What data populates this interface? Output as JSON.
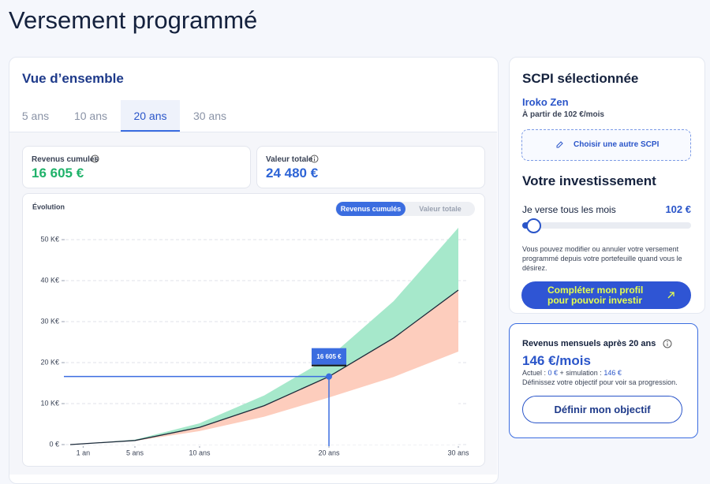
{
  "header": {
    "title": "Versement programmé"
  },
  "overview": {
    "title": "Vue d’ensemble",
    "tabs": [
      "5 ans",
      "10 ans",
      "20 ans",
      "30 ans"
    ],
    "active_tab": 2,
    "cards": [
      {
        "label": "Revenus cumulés",
        "value": "16 605 €"
      },
      {
        "label": "Valeur totale",
        "value": "24 480 €"
      }
    ]
  },
  "chart_data": {
    "type": "area",
    "title": "Évolution",
    "toggles": [
      "Revenus cumulés",
      "Valeur totale"
    ],
    "active_toggle": 0,
    "x": [
      0,
      5,
      10,
      15,
      20,
      25,
      30
    ],
    "series": [
      {
        "color": "#a6e8cb",
        "values": [
          0,
          1.2,
          5.2,
          12,
          21.2,
          35,
          52.9
        ]
      },
      {
        "color": "#fdcdbd",
        "values": [
          0,
          1.0,
          4.2,
          9.5,
          16.6,
          26,
          37.7
        ]
      },
      {
        "color": "#ffffff",
        "values": [
          0,
          0.9,
          3.3,
          6.8,
          11.5,
          16.5,
          22.7
        ]
      }
    ],
    "line_color": "#1c2a3a",
    "xlim": [
      0,
      30
    ],
    "xticks": [
      {
        "value": 1,
        "label": "1 an"
      },
      {
        "value": 5,
        "label": "5 ans"
      },
      {
        "value": 10,
        "label": "10 ans"
      },
      {
        "value": 20,
        "label": "20 ans"
      },
      {
        "value": 30,
        "label": "30 ans"
      }
    ],
    "ylim": [
      0,
      55
    ],
    "yticks": [
      {
        "value": 0,
        "label": "0 €"
      },
      {
        "value": 10,
        "label": "10 K€"
      },
      {
        "value": 20,
        "label": "20 K€"
      },
      {
        "value": 30,
        "label": "30 K€"
      },
      {
        "value": 40,
        "label": "40 K€"
      },
      {
        "value": 50,
        "label": "50 K€"
      }
    ],
    "grid": true,
    "highlight": {
      "x": 20,
      "value": 16.605,
      "label": "16 605 €",
      "color": "#3b6de0"
    }
  },
  "sidebar": {
    "title": "SCPI sélectionnée",
    "scpi_name": "Iroko Zen",
    "price": "À partir de 102 €/mois",
    "change_button": "Choisir une autre SCPI",
    "investment_title": "Votre investissement",
    "slider_label": "Je verse tous les mois",
    "amount": "102 €",
    "note": "Vous pouvez modifier ou annuler votre versement programmé depuis votre portefeuille quand vous le désirez.",
    "cta": "Compléter mon profil pour pouvoir investir",
    "result": {
      "title": "Revenus mensuels après 20 ans",
      "value": "146 €/mois",
      "detail": [
        "Actuel : ",
        "0 €",
        " + simulation : ",
        "146 €"
      ],
      "hint": "Définissez votre objectif pour voir sa progression.",
      "button": "Définir mon objectif"
    }
  }
}
